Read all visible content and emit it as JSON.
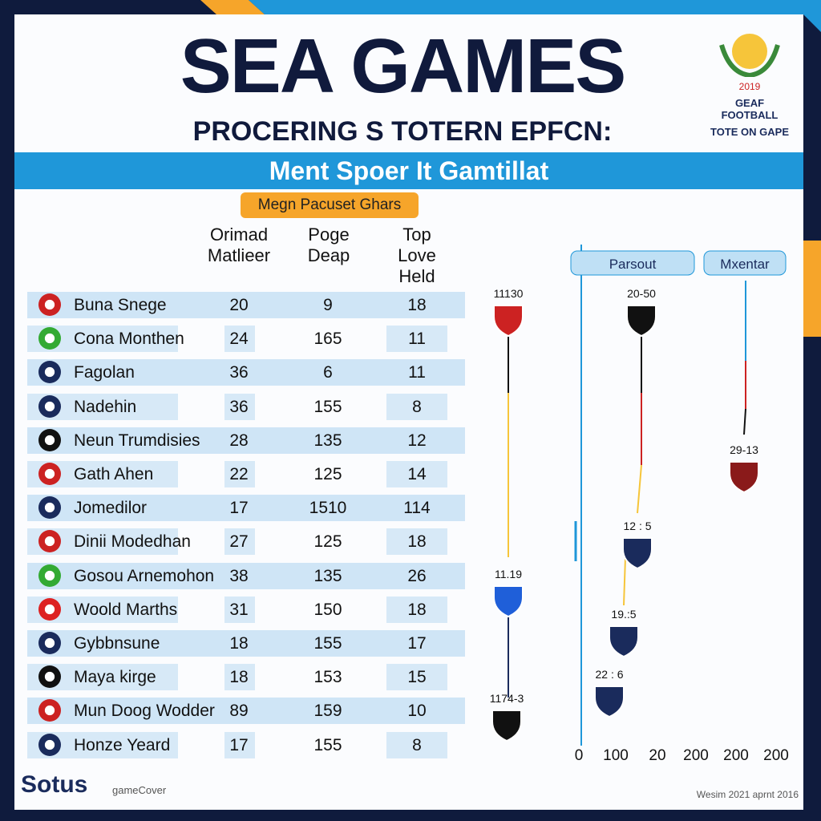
{
  "header": {
    "title": "SEA GAMES",
    "subtitle": "PROCERING S TOTERN EPFCN:",
    "logo": {
      "year": "2019",
      "line1": "GEAF FOOTBALL",
      "line2": "TOTE ON GAPE"
    }
  },
  "banner": "Ment Spoer It Gamtillat",
  "table": {
    "tag": "Megn Pacuset Ghars",
    "columns": [
      "Orimad\nMatlieer",
      "Poge\nDeap",
      "Top\nLove\nHeld"
    ],
    "rows": [
      [
        "Buna Snege",
        "20",
        "9",
        "18"
      ],
      [
        "Cona Monthen",
        "24",
        "165",
        "11"
      ],
      [
        "Fagolan",
        "36",
        "6",
        "11"
      ],
      [
        "Nadehin",
        "36",
        "155",
        "8"
      ],
      [
        "Neun Trumdisies",
        "28",
        "135",
        "12"
      ],
      [
        "Gath Ahen",
        "22",
        "125",
        "14"
      ],
      [
        "Jomedilor",
        "17",
        "1510",
        "114"
      ],
      [
        "Dinii Modedhan",
        "27",
        "125",
        "18"
      ],
      [
        "Gosou Arnemohon",
        "38",
        "135",
        "26"
      ],
      [
        "Woold Marths",
        "31",
        "150",
        "18"
      ],
      [
        "Gybbnsune",
        "18",
        "155",
        "17"
      ],
      [
        "Maya kirge",
        "18",
        "153",
        "15"
      ],
      [
        "Mun Doog Wodder",
        "89",
        "159",
        "10"
      ],
      [
        "Honze Yeard",
        "17",
        "155",
        "8"
      ]
    ]
  },
  "panel": {
    "labels": [
      "Parsout",
      "Mxentar"
    ],
    "markers": [
      "11130",
      "20-50",
      "29-13",
      "12 : 5",
      "11.19",
      "19.:5",
      "22 : 6",
      "1174-3"
    ],
    "axis": [
      "0",
      "100",
      "20",
      "200",
      "200",
      "200"
    ]
  },
  "footer": {
    "brand": "Sotus",
    "partner": "gameCover",
    "date": "Wesim 2021 aprnt 2016"
  }
}
